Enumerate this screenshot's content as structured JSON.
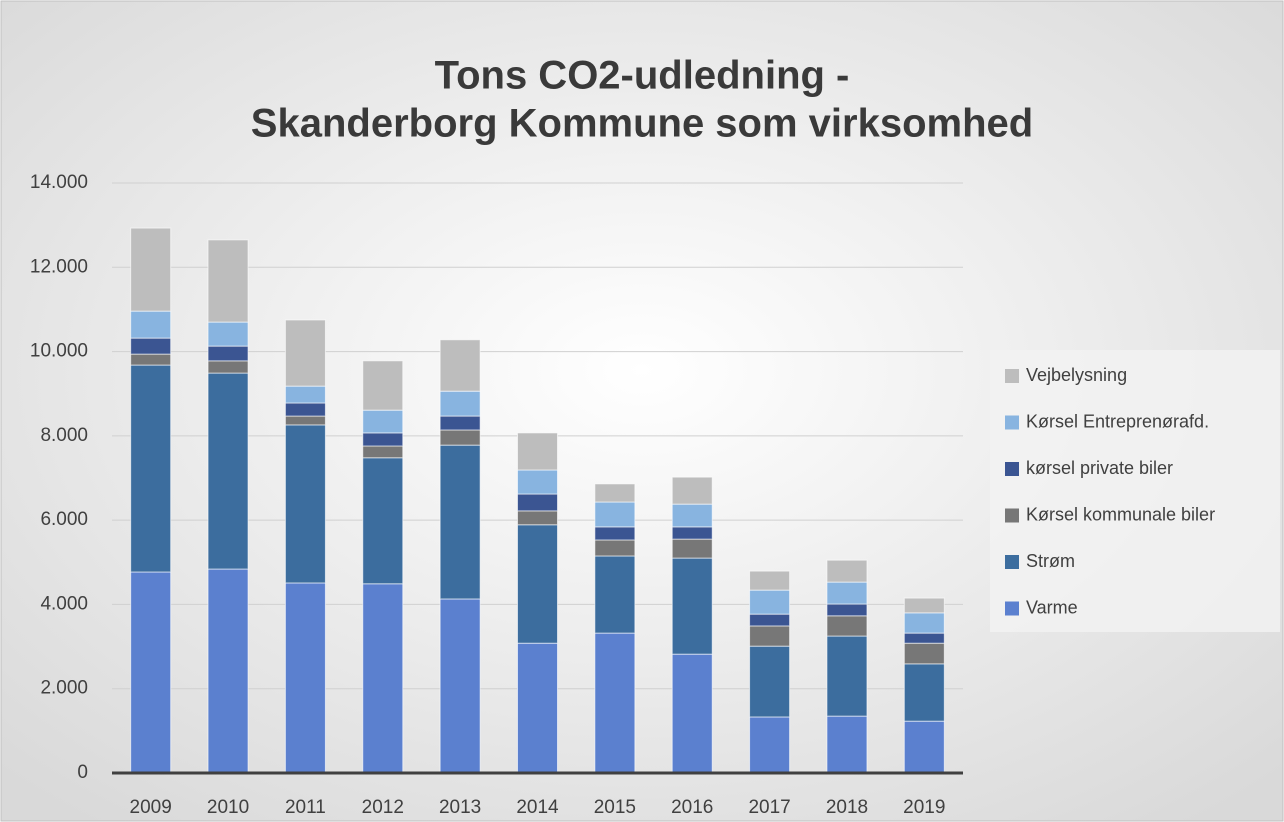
{
  "chart_data": {
    "type": "stacked_bar",
    "title": [
      "Tons CO2-udledning -",
      "Skanderborg Kommune som virksomhed"
    ],
    "categories": [
      "2009",
      "2010",
      "2011",
      "2012",
      "2013",
      "2014",
      "2015",
      "2016",
      "2017",
      "2018",
      "2019"
    ],
    "series": [
      {
        "name": "Varme",
        "color": "#5b80cf",
        "values": [
          4770,
          4840,
          4510,
          4490,
          4130,
          3080,
          3320,
          2820,
          1330,
          1350,
          1230
        ]
      },
      {
        "name": "Strøm",
        "color": "#3c6d9e",
        "values": [
          4910,
          4650,
          3750,
          2990,
          3650,
          2810,
          1830,
          2280,
          1680,
          1900,
          1360
        ]
      },
      {
        "name": "Kørsel kommunale biler",
        "color": "#777777",
        "values": [
          260,
          290,
          210,
          280,
          360,
          330,
          380,
          450,
          480,
          480,
          490
        ]
      },
      {
        "name": "kørsel private biler",
        "color": "#3b5592",
        "values": [
          380,
          350,
          310,
          310,
          330,
          400,
          310,
          290,
          280,
          280,
          240
        ]
      },
      {
        "name": "Kørsel Entreprenørafd.",
        "color": "#88b4e0",
        "values": [
          640,
          570,
          400,
          540,
          590,
          570,
          590,
          540,
          570,
          520,
          480
        ]
      },
      {
        "name": "Vejbelysning",
        "color": "#bdbdbd",
        "values": [
          1970,
          1950,
          1570,
          1170,
          1220,
          880,
          430,
          640,
          450,
          520,
          350
        ]
      }
    ],
    "ylim": [
      0,
      14000
    ],
    "yticks": [
      0,
      {
        "value": 2000,
        "label": "2.000"
      },
      {
        "value": 4000,
        "label": "4.000"
      },
      {
        "value": 6000,
        "label": "6.000"
      },
      {
        "value": 8000,
        "label": "8.000"
      },
      {
        "value": 10000,
        "label": "10.000"
      },
      {
        "value": 12000,
        "label": "12.000"
      },
      {
        "value": 14000,
        "label": "14.000"
      }
    ],
    "grid": true,
    "legend": "right"
  }
}
